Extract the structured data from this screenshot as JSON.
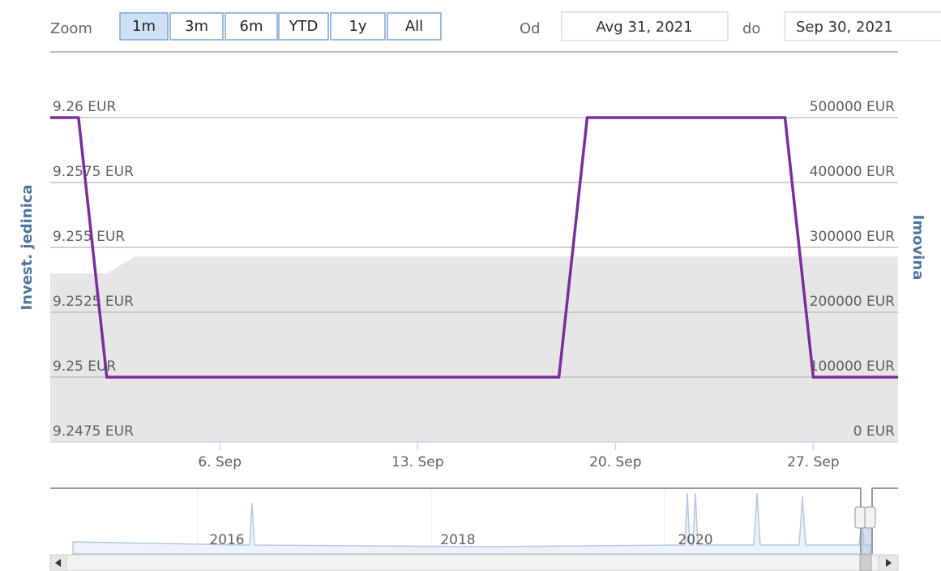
{
  "range_selector": {
    "zoom_label": "Zoom",
    "buttons": [
      "1m",
      "3m",
      "6m",
      "YTD",
      "1y",
      "All"
    ],
    "selected": 0,
    "from_label": "Od",
    "from_value": "Avg 31, 2021",
    "to_label": "do",
    "to_value": "Sep 30, 2021"
  },
  "chart_data": {
    "type": "line",
    "ylabel": "Invest. jedinica",
    "y2label": "Imovina",
    "xlim": [
      "2021-08-31",
      "2021-09-30"
    ],
    "xticks": [
      {
        "value": "2021-09-06",
        "label": "6. Sep"
      },
      {
        "value": "2021-09-13",
        "label": "13. Sep"
      },
      {
        "value": "2021-09-20",
        "label": "20. Sep"
      },
      {
        "value": "2021-09-27",
        "label": "27. Sep"
      }
    ],
    "ylim": [
      9.2475,
      9.26
    ],
    "yticks": [
      {
        "value": 9.2475,
        "label": "9.2475 EUR"
      },
      {
        "value": 9.25,
        "label": "9.25 EUR"
      },
      {
        "value": 9.2525,
        "label": "9.2525 EUR"
      },
      {
        "value": 9.255,
        "label": "9.255 EUR"
      },
      {
        "value": 9.2575,
        "label": "9.2575 EUR"
      },
      {
        "value": 9.26,
        "label": "9.26 EUR"
      }
    ],
    "y2lim": [
      0,
      500000
    ],
    "y2ticks": [
      {
        "value": 0,
        "label": "0 EUR"
      },
      {
        "value": 100000,
        "label": "100000 EUR"
      },
      {
        "value": 200000,
        "label": "200000 EUR"
      },
      {
        "value": 300000,
        "label": "300000 EUR"
      },
      {
        "value": 400000,
        "label": "400000 EUR"
      },
      {
        "value": 500000,
        "label": "500000 EUR"
      }
    ],
    "grid": true,
    "series": [
      {
        "type": "area",
        "axis": "y2",
        "color": "#e6e6e6",
        "x": [
          "2021-08-31",
          "2021-09-02",
          "2021-09-03",
          "2021-09-30"
        ],
        "values": [
          260000,
          260000,
          286000,
          286000
        ]
      },
      {
        "type": "line",
        "color": "#7b2d9e",
        "x": [
          "2021-08-31",
          "2021-09-01",
          "2021-09-02",
          "2021-09-18",
          "2021-09-19",
          "2021-09-26",
          "2021-09-27",
          "2021-09-30"
        ],
        "values": [
          9.26,
          9.26,
          9.25,
          9.25,
          9.26,
          9.26,
          9.25,
          9.25
        ]
      }
    ]
  },
  "navigator": {
    "labels": [
      "2016",
      "2018",
      "2020"
    ]
  }
}
